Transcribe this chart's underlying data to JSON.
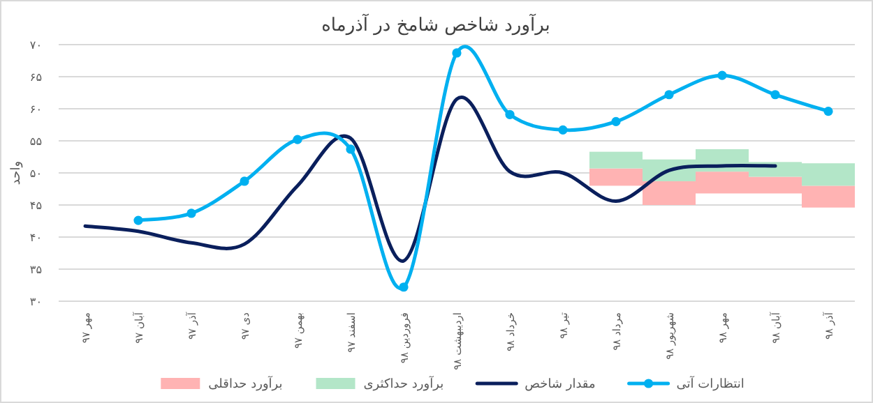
{
  "chart_data": {
    "type": "line",
    "title": "برآورد شاخص شامخ در آذرماه",
    "ylabel": "واحد",
    "categories": [
      "مهر ۹۷",
      "آبان ۹۷",
      "آذر ۹۷",
      "دی ۹۷",
      "بهمن ۹۷",
      "اسفند ۹۷",
      "فروردین ۹۸",
      "اردیبهشت ۹۸",
      "خرداد ۹۸",
      "تیر ۹۸",
      "مرداد ۹۸",
      "شهریور ۹۸",
      "مهر ۹۸",
      "آبان ۹۸",
      "آذر ۹۸"
    ],
    "series": [
      {
        "name": "برآورد حداقلی",
        "type": "bar",
        "color": "#ffb3b3",
        "values": [
          null,
          null,
          null,
          null,
          null,
          null,
          null,
          null,
          null,
          null,
          2.7,
          3.7,
          3.4,
          2.6,
          3.4
        ],
        "base": [
          null,
          null,
          null,
          null,
          null,
          null,
          null,
          null,
          null,
          null,
          48.0,
          45.0,
          46.8,
          46.8,
          44.6
        ]
      },
      {
        "name": "برآورد حداکثری",
        "type": "bar",
        "color": "#b3e6c8",
        "values": [
          null,
          null,
          null,
          null,
          null,
          null,
          null,
          null,
          null,
          null,
          2.6,
          3.4,
          3.5,
          2.3,
          3.5
        ],
        "base": [
          null,
          null,
          null,
          null,
          null,
          null,
          null,
          null,
          null,
          null,
          50.7,
          48.7,
          50.2,
          49.4,
          48.0
        ]
      },
      {
        "name": "مقدار شاخص",
        "color": "#0a1f5c",
        "marker": "none",
        "values": [
          41.7,
          40.9,
          39.1,
          38.9,
          48.0,
          55.4,
          36.3,
          61.5,
          50.2,
          50.0,
          45.6,
          50.4,
          51.1,
          51.1,
          null
        ]
      },
      {
        "name": "انتظارات آتی",
        "color": "#00b0f0",
        "marker": "circle",
        "values": [
          null,
          42.6,
          43.7,
          48.7,
          55.2,
          53.7,
          32.2,
          68.7,
          59.1,
          56.7,
          58.0,
          62.2,
          65.2,
          62.2,
          59.6
        ]
      }
    ],
    "ylim": [
      30,
      70
    ],
    "yticks": [
      {
        "value": 30,
        "label": "۳۰"
      },
      {
        "value": 35,
        "label": "۳۵"
      },
      {
        "value": 40,
        "label": "۴۰"
      },
      {
        "value": 45,
        "label": "۴۵"
      },
      {
        "value": 50,
        "label": "۵۰"
      },
      {
        "value": 55,
        "label": "۵۵"
      },
      {
        "value": 60,
        "label": "۶۰"
      },
      {
        "value": 65,
        "label": "۶۵"
      },
      {
        "value": 70,
        "label": "۷۰"
      }
    ],
    "grid": "y",
    "legend": "bottom",
    "line_style": "solid"
  }
}
